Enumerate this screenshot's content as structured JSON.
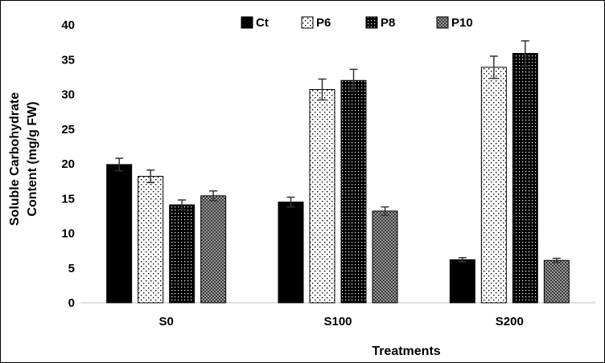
{
  "chart_data": {
    "type": "bar",
    "xlabel": "Treatments",
    "ylabel": "Soluble Carbohydrate Content (mg/g FW)",
    "ylabel_lines": [
      "Soluble Carbohydrate",
      "Content (mg/g FW)"
    ],
    "ylim": [
      0,
      40
    ],
    "yticks": [
      0,
      5,
      10,
      15,
      20,
      25,
      30,
      35,
      40
    ],
    "grid": false,
    "legend_position": "top",
    "categories": [
      "S0",
      "S100",
      "S200"
    ],
    "series": [
      {
        "name": "Ct",
        "pattern": "solid",
        "values": [
          19.9,
          14.5,
          6.2
        ],
        "errors": [
          0.9,
          0.7,
          0.3
        ]
      },
      {
        "name": "P6",
        "pattern": "sparse-dots",
        "values": [
          18.2,
          30.7,
          33.9
        ],
        "errors": [
          0.9,
          1.5,
          1.6
        ]
      },
      {
        "name": "P8",
        "pattern": "dense-dots",
        "values": [
          14.1,
          32.0,
          35.9
        ],
        "errors": [
          0.7,
          1.6,
          1.8
        ]
      },
      {
        "name": "P10",
        "pattern": "gray-dots",
        "values": [
          15.4,
          13.2,
          6.1
        ],
        "errors": [
          0.7,
          0.6,
          0.3
        ]
      }
    ]
  }
}
